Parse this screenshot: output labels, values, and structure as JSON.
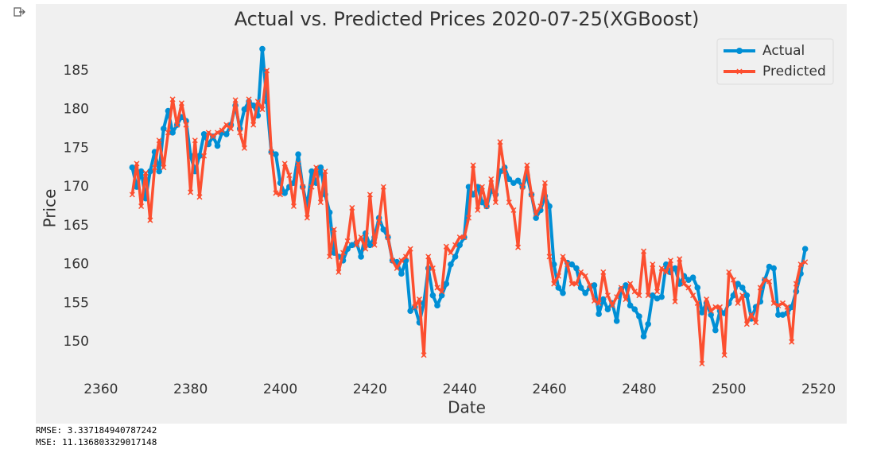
{
  "chart_data": {
    "type": "line",
    "title": "Actual vs. Predicted Prices 2020-07-25(XGBoost)",
    "xlabel": "Date",
    "ylabel": "Price",
    "x": [
      2367,
      2368,
      2369,
      2370,
      2371,
      2372,
      2373,
      2374,
      2375,
      2376,
      2377,
      2378,
      2379,
      2380,
      2381,
      2382,
      2383,
      2384,
      2385,
      2386,
      2387,
      2388,
      2389,
      2390,
      2391,
      2392,
      2393,
      2394,
      2395,
      2396,
      2397,
      2398,
      2399,
      2400,
      2401,
      2402,
      2403,
      2404,
      2405,
      2406,
      2407,
      2408,
      2409,
      2410,
      2411,
      2412,
      2413,
      2414,
      2415,
      2416,
      2417,
      2418,
      2419,
      2420,
      2421,
      2422,
      2423,
      2424,
      2425,
      2426,
      2427,
      2428,
      2429,
      2430,
      2431,
      2432,
      2433,
      2434,
      2435,
      2436,
      2437,
      2438,
      2439,
      2440,
      2441,
      2442,
      2443,
      2444,
      2445,
      2446,
      2447,
      2448,
      2449,
      2450,
      2451,
      2452,
      2453,
      2454,
      2455,
      2456,
      2457,
      2458,
      2459,
      2460,
      2461,
      2462,
      2463,
      2464,
      2465,
      2466,
      2467,
      2468,
      2469,
      2470,
      2471,
      2472,
      2473,
      2474,
      2475,
      2476,
      2477,
      2478,
      2479,
      2480,
      2481,
      2482,
      2483,
      2484,
      2485,
      2486,
      2487,
      2488,
      2489,
      2490,
      2491,
      2492,
      2493,
      2494,
      2495,
      2496,
      2497,
      2498,
      2499,
      2500,
      2501,
      2502,
      2503,
      2504,
      2505,
      2506,
      2507,
      2508,
      2509,
      2510,
      2511,
      2512,
      2513,
      2514,
      2515,
      2516,
      2517
    ],
    "series": [
      {
        "name": "Actual",
        "color": "#008fd5",
        "marker": "o",
        "values": [
          172.5,
          170,
          172,
          168.5,
          172,
          174.5,
          172,
          177.5,
          179.8,
          177,
          178,
          179,
          178.5,
          174,
          172,
          174,
          176.8,
          175.5,
          176.5,
          175.3,
          177,
          176.8,
          178,
          180.5,
          177.5,
          180,
          181,
          180.5,
          179.2,
          187.8,
          181,
          174.5,
          174.2,
          170.5,
          169.2,
          170,
          170.5,
          174.2,
          170,
          167.5,
          172,
          170.5,
          172.5,
          169,
          166.7,
          161.5,
          161,
          160.5,
          162,
          162.5,
          162.8,
          161,
          164,
          162.5,
          163.5,
          166,
          164.5,
          163.5,
          160.5,
          160.3,
          158.8,
          160.5,
          154,
          154.5,
          152.5,
          155,
          159.5,
          156,
          154.7,
          156,
          157.5,
          160,
          161,
          162.5,
          163.5,
          170,
          169,
          170,
          168,
          167.5,
          169.5,
          169,
          172,
          172.5,
          171,
          170.5,
          170.8,
          170,
          171.5,
          169,
          166,
          167,
          168.8,
          167.5,
          160,
          157,
          156.3,
          160.2,
          160,
          159.5,
          157,
          156.3,
          157,
          157.3,
          153.6,
          155.5,
          154.2,
          155,
          152.7,
          156.8,
          157.3,
          154.7,
          154.2,
          153.3,
          150.7,
          152.3,
          156,
          155.6,
          155.8,
          160,
          159,
          159.5,
          157.5,
          158.5,
          158,
          158.3,
          157,
          153.8,
          155,
          153.5,
          151.5,
          154,
          153.7,
          155,
          156,
          157.5,
          157,
          156,
          153,
          154.5,
          155.2,
          158,
          159.7,
          159.5,
          153.5,
          153.5,
          153.7,
          154.5,
          156.5,
          158.8,
          162
        ]
      },
      {
        "name": "Predicted",
        "color": "#fc4f30",
        "marker": "x",
        "values": [
          169,
          173,
          167.5,
          171.8,
          165.7,
          172.5,
          176,
          172.5,
          177,
          181.3,
          178,
          180.8,
          178,
          169.3,
          176,
          168.7,
          174,
          177,
          176.5,
          177,
          177.3,
          178,
          177.5,
          181.2,
          177,
          175,
          181.3,
          178,
          181,
          180,
          185,
          174.5,
          169.2,
          169,
          173,
          171.5,
          167.5,
          173,
          170,
          166,
          170,
          172.5,
          168,
          172,
          161,
          164.5,
          159,
          161.5,
          163,
          167.3,
          162.5,
          163.5,
          162,
          169,
          162.5,
          165.5,
          170,
          163.5,
          160.5,
          159.5,
          160.5,
          161,
          162,
          154.5,
          155.5,
          148.3,
          161,
          159.5,
          157,
          156.5,
          162.3,
          161.5,
          162.5,
          163.5,
          163.5,
          166,
          172.8,
          167,
          170,
          167.5,
          171,
          168,
          175.8,
          172,
          168,
          167,
          162.2,
          170,
          172.8,
          169,
          166.5,
          167.5,
          170.5,
          161,
          157.5,
          158.5,
          161,
          160,
          157.5,
          157.5,
          159,
          158.5,
          157.3,
          155.3,
          155,
          159,
          156,
          154.7,
          155.8,
          157,
          155.5,
          157.5,
          156.5,
          156,
          161.7,
          156,
          160,
          156.5,
          159.5,
          159,
          160.5,
          155.2,
          160.7,
          157.5,
          157,
          156,
          155,
          147.2,
          155.5,
          154,
          154.5,
          154.5,
          148.3,
          159,
          158,
          155,
          156,
          152.3,
          153.5,
          152.5,
          157,
          158,
          157.8,
          155,
          154.7,
          155,
          154.5,
          150,
          157.5,
          160,
          160.3
        ]
      }
    ],
    "xlim": [
      2359.5,
      2524.5
    ],
    "ylim": [
      145.2,
      189.8
    ],
    "xticks": [
      2360,
      2380,
      2400,
      2420,
      2440,
      2460,
      2480,
      2500,
      2520
    ],
    "yticks": [
      150,
      155,
      160,
      165,
      170,
      175,
      180,
      185
    ],
    "grid": false,
    "legend": "upper right"
  },
  "output": [
    "RMSE: 3.337184940787242",
    "MSE: 11.136803329017148"
  ]
}
